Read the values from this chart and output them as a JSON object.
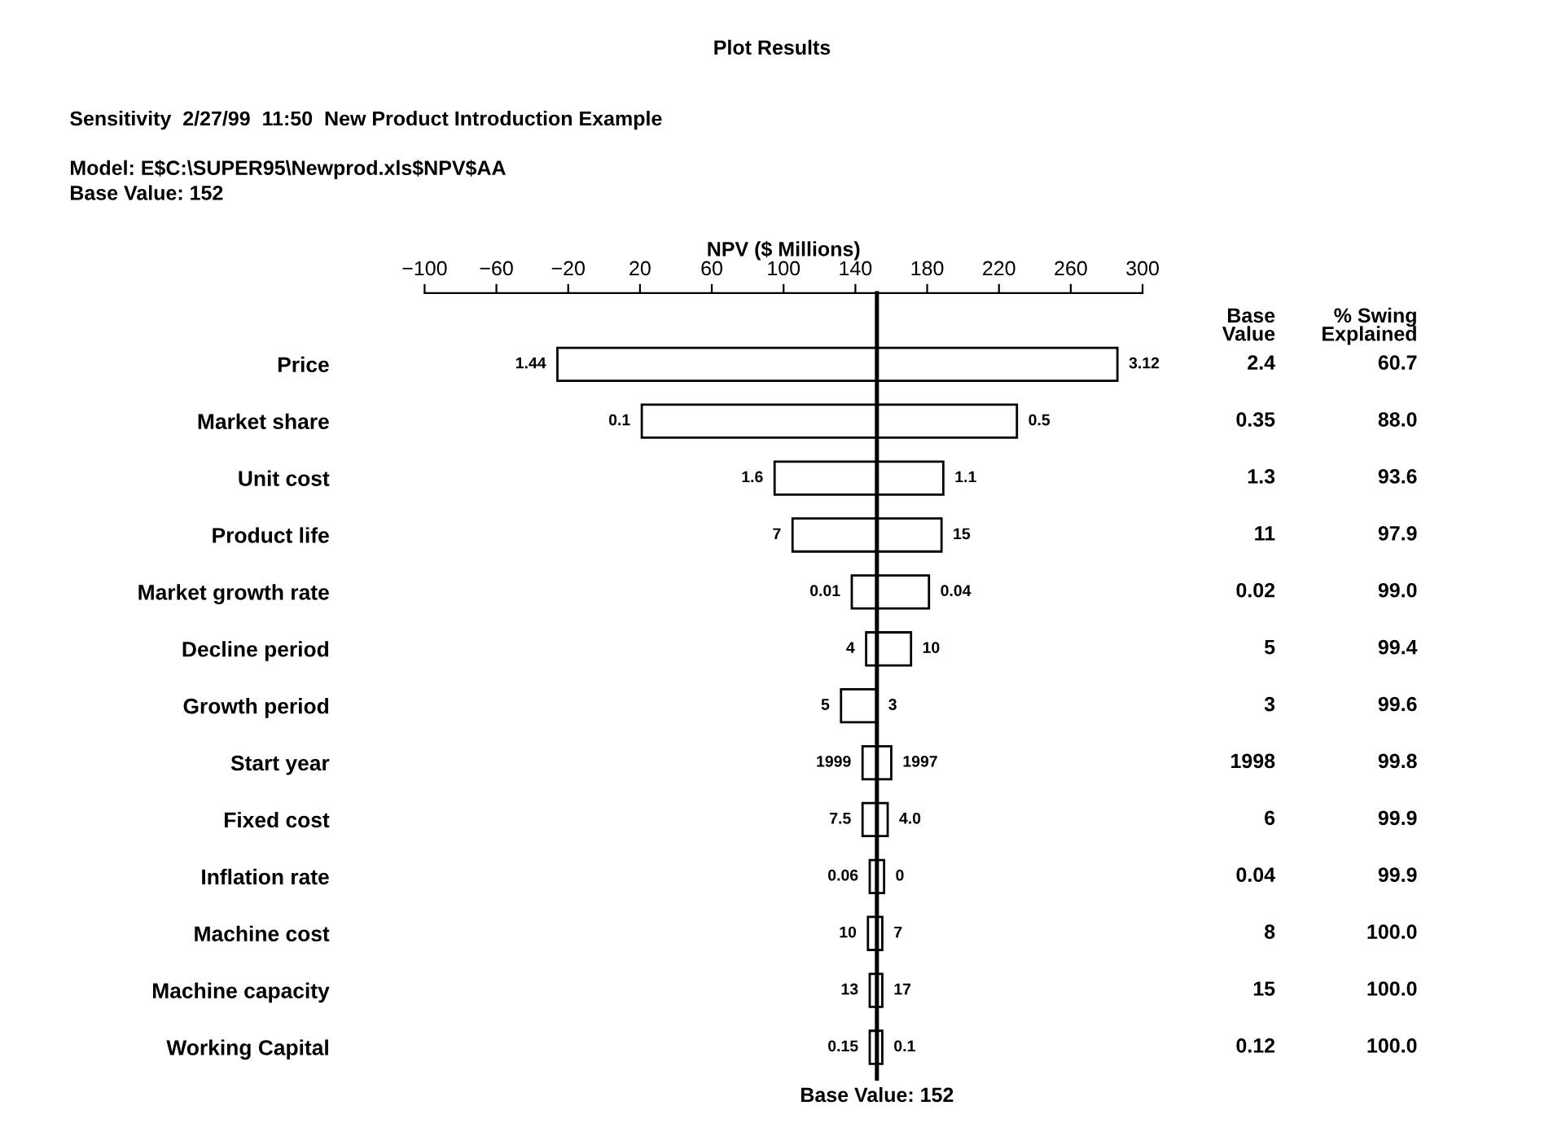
{
  "chart_data": {
    "type": "bar",
    "orientation": "horizontal",
    "title": "Plot Results",
    "subtitle": "Sensitivity  2/27/99  11:50  New Product Introduction Example",
    "xlabel": "NPV ($ Millions)",
    "categories": [
      "Price",
      "Market share",
      "Unit cost",
      "Product life",
      "Market growth rate",
      "Decline period",
      "Growth period",
      "Start year",
      "Fixed cost",
      "Inflation rate",
      "Machine cost",
      "Machine capacity",
      "Working Capital"
    ],
    "base": [
      -26,
      21,
      95,
      105,
      138,
      146,
      132,
      144,
      144,
      148,
      147,
      148,
      148
    ],
    "values": [
      312,
      209,
      94,
      83,
      43,
      25,
      20,
      16,
      14,
      8,
      8,
      7,
      7
    ],
    "color": "#ffffff",
    "xlim": [
      -100,
      300
    ],
    "xticks": [
      {
        "value": -100,
        "label": "−100"
      },
      {
        "value": -60,
        "label": "−60"
      },
      {
        "value": -20,
        "label": "−20"
      },
      20,
      60,
      100,
      140,
      180,
      220,
      260,
      300
    ],
    "ref_lines": [
      {
        "axis": "x",
        "value": 152,
        "label": "Base Value: 152"
      }
    ],
    "grid": false,
    "legend": false,
    "annotations": [
      "Model: E$C:\\SUPER95\\Newprod.xls$NPV$AA",
      "Base Value: 152",
      "Base\nValue",
      "% Swing\nExplained",
      "2.4",
      "60.7",
      "0.35",
      "88.0",
      "1.3",
      "93.6",
      "11",
      "97.9",
      "0.02",
      "99.0",
      "5",
      "99.4",
      "3",
      "99.6",
      "1998",
      "99.8",
      "6",
      "99.9",
      "0.04",
      "99.9",
      "8",
      "100.0",
      "15",
      "100.0",
      "0.12",
      "100.0",
      {
        "text": "1.44",
        "x": -26,
        "y": "Price"
      },
      {
        "text": "3.12",
        "x": 286,
        "y": "Price"
      },
      {
        "text": "0.1",
        "x": 21,
        "y": "Market share"
      },
      {
        "text": "0.5",
        "x": 230,
        "y": "Market share"
      },
      {
        "text": "1.6",
        "x": 95,
        "y": "Unit cost"
      },
      {
        "text": "1.1",
        "x": 189,
        "y": "Unit cost"
      },
      {
        "text": "7",
        "x": 105,
        "y": "Product life"
      },
      {
        "text": "15",
        "x": 188,
        "y": "Product life"
      },
      {
        "text": "0.01",
        "x": 138,
        "y": "Market growth rate"
      },
      {
        "text": "0.04",
        "x": 181,
        "y": "Market growth rate"
      },
      {
        "text": "4",
        "x": 146,
        "y": "Decline period"
      },
      {
        "text": "10",
        "x": 171,
        "y": "Decline period"
      },
      {
        "text": "5",
        "x": 132,
        "y": "Growth period"
      },
      {
        "text": "3",
        "x": 152,
        "y": "Growth period"
      },
      {
        "text": "1999",
        "x": 144,
        "y": "Start year"
      },
      {
        "text": "1997",
        "x": 160,
        "y": "Start year"
      },
      {
        "text": "7.5",
        "x": 144,
        "y": "Fixed cost"
      },
      {
        "text": "4.0",
        "x": 158,
        "y": "Fixed cost"
      },
      {
        "text": "0.06",
        "x": 148,
        "y": "Inflation rate"
      },
      {
        "text": "0",
        "x": 156,
        "y": "Inflation rate"
      },
      {
        "text": "10",
        "x": 147,
        "y": "Machine cost"
      },
      {
        "text": "7",
        "x": 155,
        "y": "Machine cost"
      },
      {
        "text": "13",
        "x": 148,
        "y": "Machine capacity"
      },
      {
        "text": "17",
        "x": 155,
        "y": "Machine capacity"
      },
      {
        "text": "0.15",
        "x": 148,
        "y": "Working Capital"
      },
      {
        "text": "0.1",
        "x": 155,
        "y": "Working Capital"
      }
    ]
  }
}
